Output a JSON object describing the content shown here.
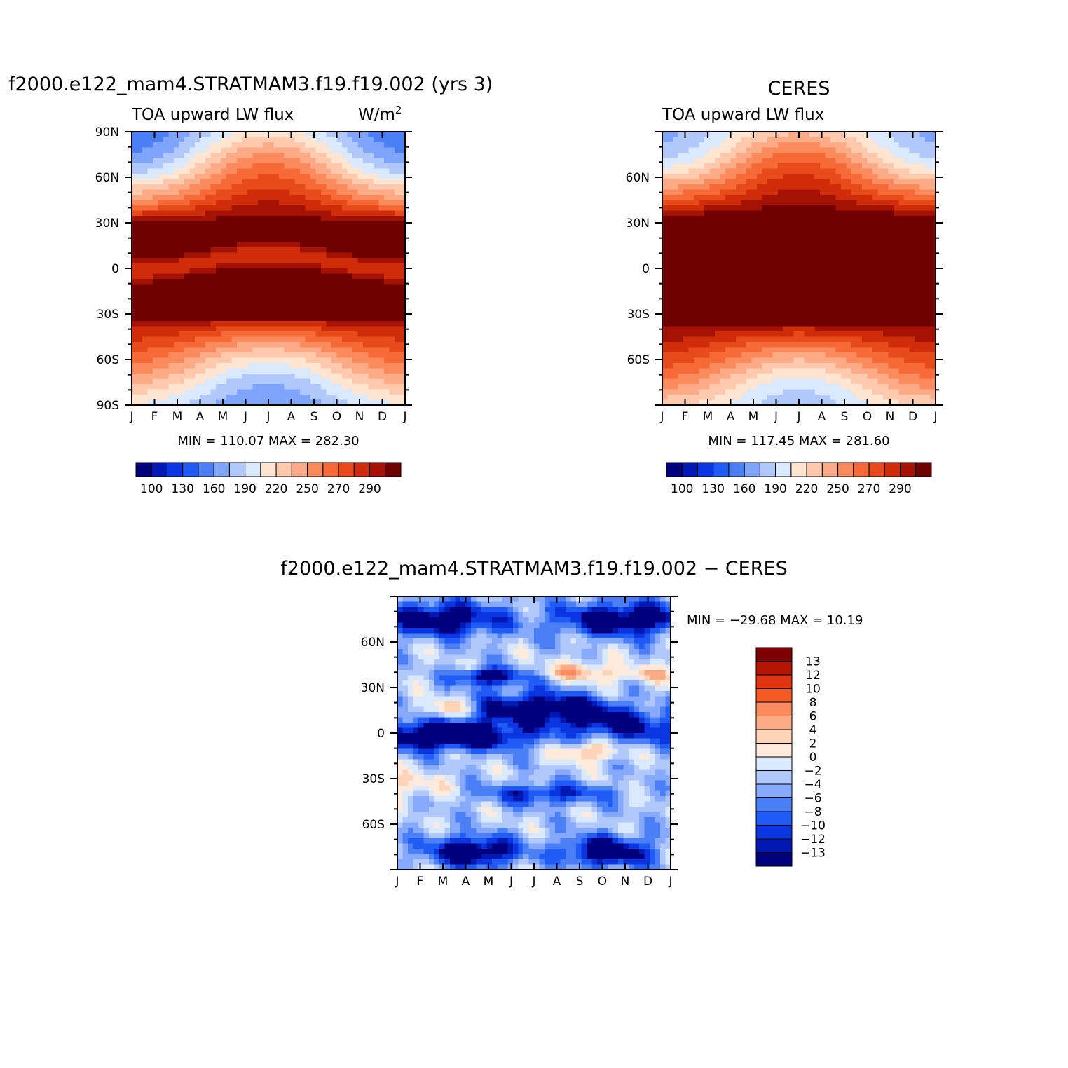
{
  "chart_data": [
    {
      "type": "heatmap",
      "title": "f2000.e122_mam4.STRATMAM3.f19.f19.002 (yrs 3)",
      "left_label": "TOA upward LW flux",
      "units_label": "W/m",
      "units_exponent": "2",
      "x_ticks": [
        "J",
        "F",
        "M",
        "A",
        "M",
        "J",
        "J",
        "A",
        "S",
        "O",
        "N",
        "D",
        "J"
      ],
      "y_ticks": [
        "90N",
        "60N",
        "30N",
        "0",
        "30S",
        "60S",
        "90S"
      ],
      "stats": "MIN = 110.07 MAX = 282.30",
      "colorbar_labels": [
        "100",
        "130",
        "160",
        "190",
        "220",
        "250",
        "270",
        "290"
      ],
      "colorbar_colors": [
        "#00007f",
        "#0019b2",
        "#0a35e0",
        "#1e5cf5",
        "#4a7ff8",
        "#7fa4fb",
        "#b0c8fc",
        "#dbe9fe",
        "#ffe5d2",
        "#fec9ad",
        "#fdab87",
        "#fb8a5c",
        "#f56a36",
        "#e84b1a",
        "#cf2d0a",
        "#a31203",
        "#700000"
      ],
      "levels": [
        100,
        110,
        120,
        130,
        140,
        150,
        160,
        170,
        180,
        190,
        200,
        210,
        220,
        230,
        240,
        250,
        260,
        270,
        280,
        290,
        300
      ],
      "field_model": "model"
    },
    {
      "type": "heatmap",
      "title": "CERES",
      "left_label": "TOA upward LW flux",
      "x_ticks": [
        "J",
        "F",
        "M",
        "A",
        "M",
        "J",
        "J",
        "A",
        "S",
        "O",
        "N",
        "D",
        "J"
      ],
      "y_ticks": [
        "60N",
        "30N",
        "0",
        "30S",
        "60S"
      ],
      "stats": "MIN = 117.45 MAX = 281.60",
      "colorbar_labels": [
        "100",
        "130",
        "160",
        "190",
        "220",
        "250",
        "270",
        "290"
      ],
      "colorbar_colors": [
        "#00007f",
        "#0019b2",
        "#0a35e0",
        "#1e5cf5",
        "#4a7ff8",
        "#7fa4fb",
        "#b0c8fc",
        "#dbe9fe",
        "#ffe5d2",
        "#fec9ad",
        "#fdab87",
        "#fb8a5c",
        "#f56a36",
        "#e84b1a",
        "#cf2d0a",
        "#a31203",
        "#700000"
      ],
      "field_model": "obs"
    },
    {
      "type": "heatmap",
      "title": "f2000.e122_mam4.STRATMAM3.f19.f19.002 − CERES",
      "x_ticks": [
        "J",
        "F",
        "M",
        "A",
        "M",
        "J",
        "J",
        "A",
        "S",
        "O",
        "N",
        "D",
        "J"
      ],
      "y_ticks": [
        "60N",
        "30N",
        "0",
        "30S",
        "60S"
      ],
      "stats": "MIN = −29.68 MAX =   10.19",
      "colorbar_labels": [
        "13",
        "12",
        "10",
        "8",
        "6",
        "4",
        "2",
        "0",
        "−2",
        "−4",
        "−6",
        "−8",
        "−10",
        "−12",
        "−13"
      ],
      "colorbar_colors": [
        "#7f0000",
        "#b51505",
        "#e0340f",
        "#f45a22",
        "#fb8a5c",
        "#fdab87",
        "#fed4b9",
        "#ffeadb",
        "#dbe9fe",
        "#b0c8fc",
        "#86a9fb",
        "#4a7ff8",
        "#1e5cf5",
        "#0a35e0",
        "#0019b2",
        "#00007f"
      ],
      "field_model": "diff"
    }
  ]
}
